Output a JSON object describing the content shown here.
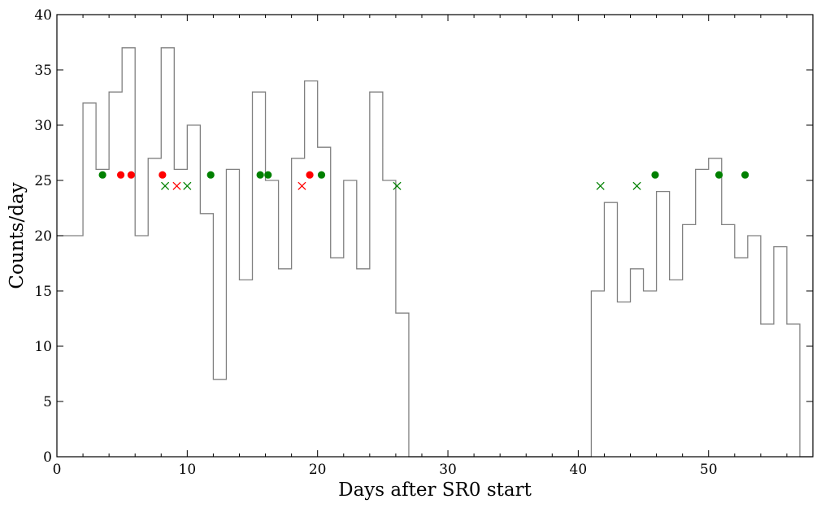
{
  "chart_data": {
    "type": "line",
    "xlabel": "Days after SR0 start",
    "ylabel": "Counts/day",
    "xlim": [
      0,
      58
    ],
    "ylim": [
      0,
      40
    ],
    "x_ticks": [
      0,
      10,
      20,
      30,
      40,
      50
    ],
    "y_ticks": [
      0,
      5,
      10,
      15,
      20,
      25,
      30,
      35,
      40
    ],
    "grid": false,
    "series": [
      {
        "kind": "step-histogram",
        "color": "#808080",
        "bin_edges": [
          0,
          1,
          2,
          3,
          4,
          5,
          6,
          7,
          8,
          9,
          10,
          11,
          12,
          13,
          14,
          15,
          16,
          17,
          18,
          19,
          20,
          21,
          22,
          23,
          24,
          25,
          26,
          27,
          28,
          29,
          30,
          31,
          32,
          33,
          34,
          35,
          36,
          37,
          38,
          39,
          40,
          41,
          42,
          43,
          44,
          45,
          46,
          47,
          48,
          49,
          50,
          51,
          52,
          53,
          54,
          55,
          56,
          57,
          58
        ],
        "values": [
          20,
          20,
          32,
          26,
          33,
          37,
          20,
          27,
          37,
          26,
          30,
          22,
          7,
          26,
          16,
          33,
          25,
          17,
          27,
          34,
          28,
          18,
          25,
          17,
          33,
          25,
          13,
          0,
          0,
          0,
          0,
          0,
          0,
          0,
          0,
          0,
          0,
          0,
          0,
          0,
          0,
          15,
          23,
          14,
          17,
          15,
          24,
          16,
          21,
          26,
          27,
          21,
          18,
          20,
          12,
          19,
          12,
          0
        ]
      },
      {
        "kind": "scatter",
        "marker": "circle",
        "color": "#008000",
        "x": [
          3.5,
          11.8,
          15.6,
          16.2,
          20.3,
          45.9,
          50.8,
          52.8
        ],
        "y": [
          25.5,
          25.5,
          25.5,
          25.5,
          25.5,
          25.5,
          25.5,
          25.5
        ]
      },
      {
        "kind": "scatter",
        "marker": "circle",
        "color": "#ff0000",
        "x": [
          4.9,
          5.7,
          8.1,
          19.4
        ],
        "y": [
          25.5,
          25.5,
          25.5,
          25.5
        ]
      },
      {
        "kind": "scatter",
        "marker": "x",
        "color": "#008000",
        "x": [
          8.3,
          10.0,
          26.1,
          41.7,
          44.5
        ],
        "y": [
          24.5,
          24.5,
          24.5,
          24.5,
          24.5
        ]
      },
      {
        "kind": "scatter",
        "marker": "x",
        "color": "#ff0000",
        "x": [
          9.2,
          18.8
        ],
        "y": [
          24.5,
          24.5
        ]
      }
    ]
  }
}
